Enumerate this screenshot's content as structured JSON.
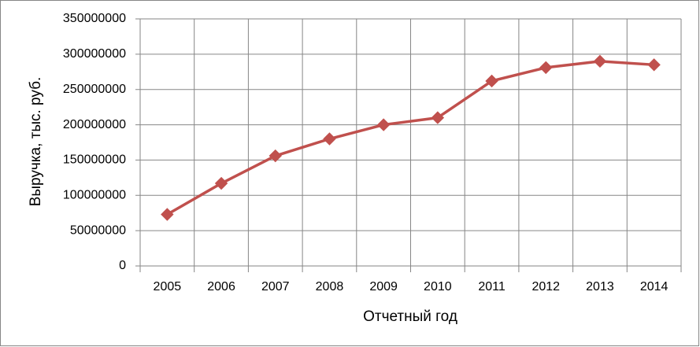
{
  "chart_data": {
    "type": "line",
    "categories": [
      "2005",
      "2006",
      "2007",
      "2008",
      "2009",
      "2010",
      "2011",
      "2012",
      "2013",
      "2014"
    ],
    "series": [
      {
        "name": "Выручка",
        "color": "#c0504d",
        "values": [
          73000000,
          117000000,
          156000000,
          180000000,
          200000000,
          210000000,
          262000000,
          281000000,
          290000000,
          285000000
        ]
      }
    ],
    "xlabel": "Отчетный год",
    "ylabel": "Выручка, тыс. руб.",
    "ylim": [
      0,
      350000000
    ],
    "yticks": [
      0,
      50000000,
      100000000,
      150000000,
      200000000,
      250000000,
      300000000,
      350000000
    ],
    "grid": true
  }
}
